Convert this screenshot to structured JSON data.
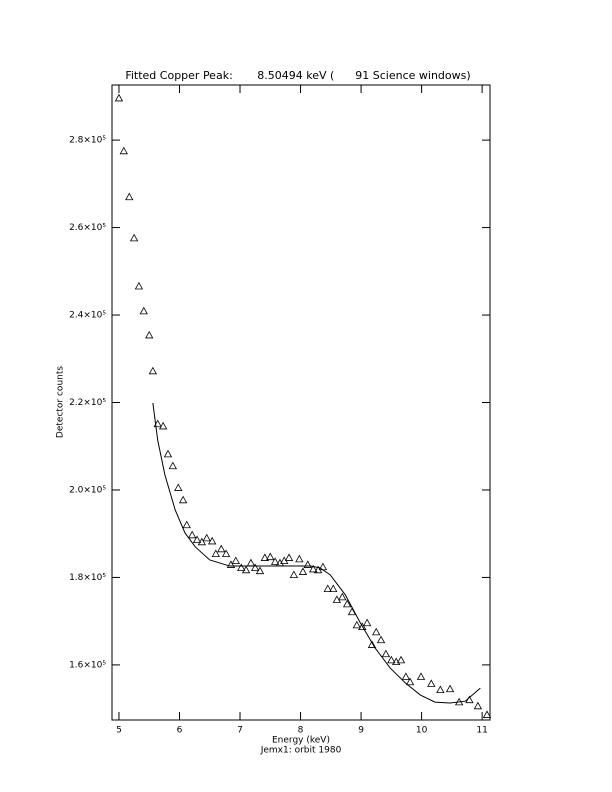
{
  "chart_data": {
    "type": "scatter",
    "title": "Fitted Copper Peak:       8.50494 keV (      91 Science windows)",
    "x_label": "Energy (keV)",
    "subtitle": "Jemx1: orbit 1980",
    "y_label": "Detector counts",
    "xlim": [
      4.885,
      11.13
    ],
    "ylim": [
      147400,
      292600
    ],
    "xticks": [
      5,
      6,
      7,
      8,
      9,
      10,
      11
    ],
    "yticks": [
      {
        "value": 160000,
        "label": "1.6×10⁵"
      },
      {
        "value": 180000,
        "label": "1.8×10⁵"
      },
      {
        "value": 200000,
        "label": "2.0×10⁵"
      },
      {
        "value": 220000,
        "label": "2.2×10⁵"
      },
      {
        "value": 240000,
        "label": "2.4×10⁵"
      },
      {
        "value": 260000,
        "label": "2.6×10⁵"
      },
      {
        "value": 280000,
        "label": "2.8×10⁵"
      }
    ],
    "series": [
      {
        "mode": "markers",
        "marker": "triangle",
        "color": "#000000",
        "x": [
          5.0,
          5.08,
          5.17,
          5.25,
          5.33,
          5.41,
          5.5,
          5.56,
          5.64,
          5.73,
          5.81,
          5.89,
          5.98,
          6.06,
          6.12,
          6.21,
          6.29,
          6.37,
          6.45,
          6.54,
          6.6,
          6.69,
          6.77,
          6.85,
          6.93,
          7.02,
          7.1,
          7.18,
          7.25,
          7.33,
          7.41,
          7.5,
          7.58,
          7.66,
          7.73,
          7.81,
          7.89,
          7.98,
          8.04,
          8.12,
          8.21,
          8.29,
          8.37,
          8.45,
          8.54,
          8.6,
          8.69,
          8.77,
          8.85,
          8.93,
          9.02,
          9.1,
          9.18,
          9.25,
          9.33,
          9.41,
          9.5,
          9.58,
          9.66,
          9.74,
          9.81,
          9.99,
          10.16,
          10.31,
          10.47,
          10.62,
          10.79,
          10.93,
          11.08
        ],
        "values": [
          289600,
          277500,
          267000,
          257600,
          246600,
          240900,
          235400,
          227200,
          215100,
          214600,
          208200,
          205500,
          200500,
          197700,
          192000,
          189700,
          188600,
          188100,
          189000,
          188300,
          185400,
          186500,
          185400,
          182900,
          183800,
          182200,
          181700,
          183300,
          182200,
          181500,
          184500,
          184700,
          183600,
          183300,
          183800,
          184500,
          180600,
          184200,
          181300,
          182900,
          181900,
          181700,
          182400,
          177400,
          177400,
          174900,
          175500,
          173900,
          172100,
          169100,
          168700,
          169600,
          164600,
          167500,
          165700,
          162500,
          161100,
          160700,
          161100,
          157300,
          156100,
          157300,
          155700,
          154300,
          154500,
          151500,
          152000,
          150600,
          148600
        ]
      },
      {
        "mode": "line",
        "color": "#000000",
        "x": [
          5.56,
          5.64,
          5.76,
          5.93,
          6.09,
          6.26,
          6.5,
          6.83,
          7.33,
          7.82,
          8.16,
          8.32,
          8.49,
          8.74,
          8.98,
          9.23,
          9.48,
          9.73,
          9.98,
          10.22,
          10.47,
          10.72,
          10.88,
          10.97
        ],
        "values": [
          219900,
          211400,
          203400,
          195400,
          190200,
          187000,
          184000,
          182600,
          182600,
          182600,
          182600,
          182200,
          180600,
          176000,
          169800,
          163900,
          159300,
          155900,
          153100,
          151500,
          151300,
          151700,
          153600,
          154700
        ]
      }
    ]
  }
}
